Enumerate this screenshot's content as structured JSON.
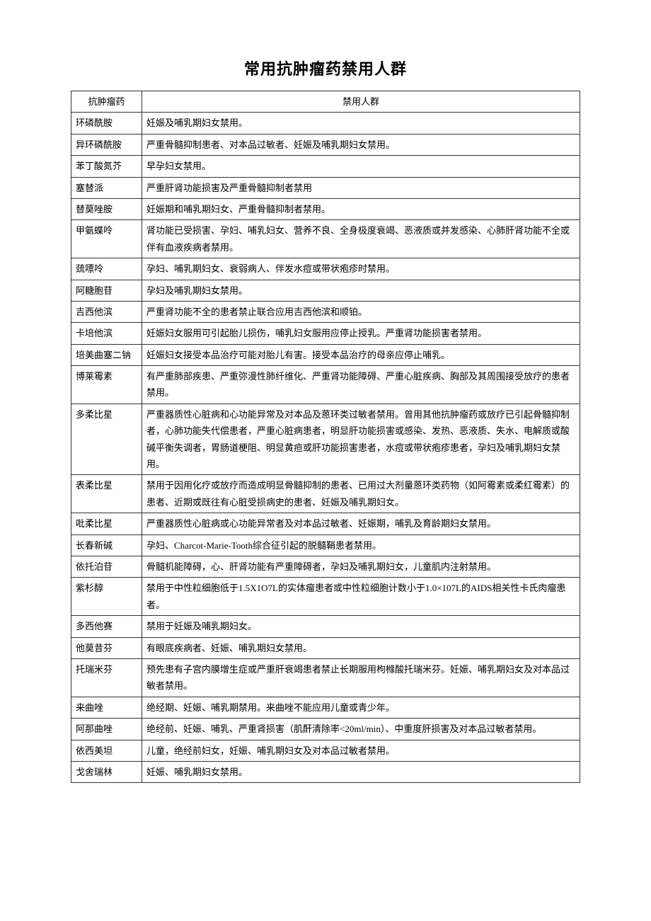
{
  "title": "常用抗肿瘤药禁用人群",
  "header": {
    "col1": "抗肿瘤药",
    "col2": "禁用人群"
  },
  "rows": [
    {
      "drug": "环磷酰胺",
      "contra": "妊娠及哺乳期妇女禁用。"
    },
    {
      "drug": "异环磷酰胺",
      "contra": "严重骨髓抑制患者、对本品过敏者、妊娠及哺乳期妇女禁用。"
    },
    {
      "drug": "苯丁酸氮芥",
      "contra": "早孕妇女禁用。"
    },
    {
      "drug": "塞替派",
      "contra": "严重肝肾功能损害及严重骨髓抑制者禁用"
    },
    {
      "drug": "替莫唑胺",
      "contra": "妊娠期和哺乳期妇女、严重骨髓抑制者禁用。"
    },
    {
      "drug": "甲氨蝶呤",
      "contra": "肾功能已受损害、孕妇、哺乳妇女、营养不良、全身极度衰竭、恶液质或并发感染、心肺肝肾功能不全或伴有血液疾病者禁用。"
    },
    {
      "drug": "巯嘌呤",
      "contra": "孕妇、哺乳期妇女、衰弱病人、伴发水痘或带状疱疹时禁用。"
    },
    {
      "drug": "阿糖胞苷",
      "contra": "孕妇及哺乳期妇女禁用。"
    },
    {
      "drug": "吉西他滨",
      "contra": "严重肾功能不全的患者禁止联合应用吉西他滨和顺铂。"
    },
    {
      "drug": "卡培他滨",
      "contra": "妊娠妇女服用可引起胎儿损伤，哺乳妇女服用应停止授乳。严重肾功能损害者禁用。"
    },
    {
      "drug": "培美曲塞二钠",
      "contra": "妊娠妇女接受本品治疗可能对胎儿有害。接受本品治疗的母亲应停止哺乳。"
    },
    {
      "drug": "博莱霉素",
      "contra": "有严重肺部疾患、严重弥漫性肺纤维化、严重肾功能障碍、严重心脏疾病、胸部及其周围接受放疗的患者禁用。"
    },
    {
      "drug": "多柔比星",
      "contra": "严重器质性心脏病和心功能异常及对本品及蒽环类过敏者禁用。曾用其他抗肿瘤药或放疗已引起骨髓抑制者，心肺功能失代偿患者，严重心脏病患者，明显肝功能损害或感染、发热、恶液质、失水、电解质或酸碱平衡失调者，胃肠道梗阻、明显黄疸或肝功能损害患者，水痘或带状疱疹患者，孕妇及哺乳期妇女禁用。"
    },
    {
      "drug": "表柔比星",
      "contra": "禁用于因用化疗或放疗而造成明显骨髓抑制的患者、已用过大剂量蒽环类药物（如阿霉素或柔红霉素）的患者、近期或既往有心脏受损病史的患者、妊娠及哺乳期妇女。"
    },
    {
      "drug": "吡柔比星",
      "contra": "严重器质性心脏病或心功能异常者及对本品过敏者、妊娠期，哺乳及育龄期妇女禁用。"
    },
    {
      "drug": "长春新碱",
      "contra": "孕妇、Charcot-Marie-Tooth综合征引起的脱髓鞘患者禁用。"
    },
    {
      "drug": "依托泊苷",
      "contra": "骨髓机能障碍，心、肝肾功能有严重障碍者，孕妇及哺乳期妇女，儿童肌内注射禁用。"
    },
    {
      "drug": "紫杉醇",
      "contra": "禁用于中性粒细胞低于1.5X1O7L的实体瘤患者或中性粒细胞计数小于1.0×107L的AIDS相关性卡氏肉瘤患者。"
    },
    {
      "drug": "多西他赛",
      "contra": "禁用于妊娠及哺乳期妇女。"
    },
    {
      "drug": "他莫昔芬",
      "contra": "有眼底疾病者、妊娠、哺乳期妇女禁用。"
    },
    {
      "drug": "托瑞米芬",
      "contra": "预先患有子宫内膜增生症或严重肝衰竭患者禁止长期服用枸橼酸托瑞米芬。妊娠、哺乳期妇女及对本品过敏者禁用。"
    },
    {
      "drug": "来曲唑",
      "contra": "绝经期、妊娠、哺乳期禁用。来曲唑不能应用儿童或青少年。"
    },
    {
      "drug": "阿那曲唑",
      "contra": "绝经前、妊娠、哺乳、严重肾损害（肌酐清除率<20ml/min）、中重度肝损害及对本品过敏者禁用。"
    },
    {
      "drug": "依西美坦",
      "contra": "儿童，绝经前妇女，妊娠、哺乳期妇女及对本品过敏者禁用。"
    },
    {
      "drug": "戈舍瑞林",
      "contra": "妊娠、哺乳期妇女禁用。"
    }
  ]
}
